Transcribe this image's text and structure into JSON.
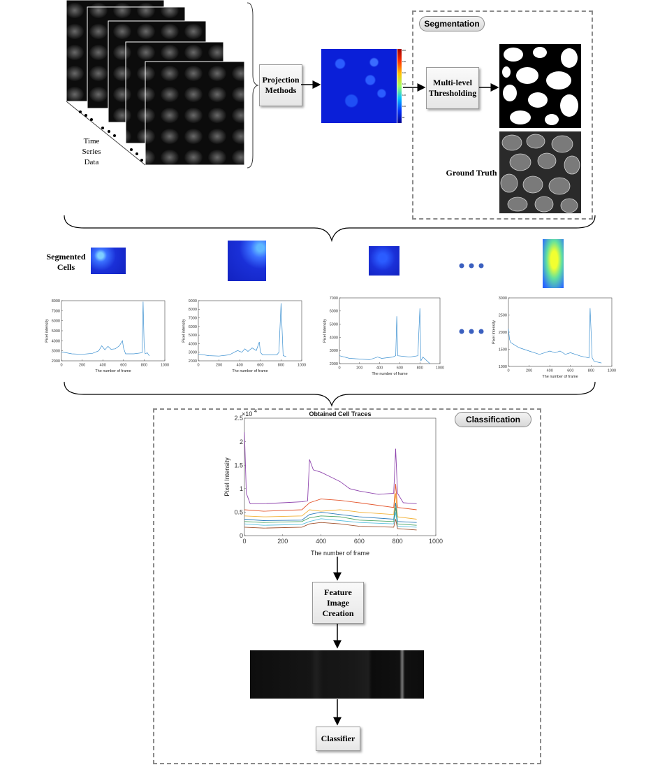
{
  "top": {
    "time_series_label": "Time\nSeries\nData",
    "projection_label": "Projection\nMethods"
  },
  "segmentation": {
    "title": "Segmentation",
    "thresholding_label": "Multi-level\nThresholding",
    "ground_truth_label": "Ground Truth"
  },
  "segmented": {
    "label": "Segmented\nCells"
  },
  "classification": {
    "title": "Classification",
    "feature_label": "Feature\nImage\nCreation",
    "classifier_label": "Classifier"
  },
  "colorbar_ticks": [
    "200",
    "180",
    "160",
    "140",
    "120",
    "100",
    "80"
  ],
  "chart_data": [
    {
      "type": "line",
      "xlabel": "The number of frame",
      "ylabel": "Pixel intensity",
      "xlim": [
        0,
        1000
      ],
      "ylim": [
        2000,
        8000
      ],
      "xticks": [
        "0",
        "200",
        "400",
        "600",
        "800",
        "1000"
      ],
      "yticks": [
        "2000",
        "3000",
        "4000",
        "5000",
        "6000",
        "7000",
        "8000"
      ],
      "x": [
        0,
        100,
        200,
        300,
        360,
        390,
        420,
        450,
        480,
        520,
        560,
        590,
        600,
        620,
        700,
        780,
        790,
        800,
        810,
        830,
        850
      ],
      "y": [
        2900,
        2700,
        2650,
        2750,
        3000,
        3500,
        3100,
        3450,
        3150,
        3200,
        3500,
        4000,
        3300,
        2700,
        2700,
        2800,
        7900,
        3500,
        2700,
        2800,
        2500
      ]
    },
    {
      "type": "line",
      "xlabel": "The number of frame",
      "ylabel": "Pixel intensity",
      "xlim": [
        0,
        1000
      ],
      "ylim": [
        2000,
        9000
      ],
      "xticks": [
        "0",
        "200",
        "400",
        "600",
        "800",
        "1000"
      ],
      "yticks": [
        "2000",
        "3000",
        "4000",
        "5000",
        "6000",
        "7000",
        "8000",
        "9000"
      ],
      "x": [
        0,
        100,
        200,
        300,
        380,
        420,
        450,
        480,
        520,
        560,
        590,
        600,
        620,
        700,
        760,
        780,
        800,
        820,
        850
      ],
      "y": [
        2800,
        2600,
        2550,
        2700,
        3200,
        3000,
        3400,
        3100,
        3500,
        3200,
        4200,
        3000,
        2700,
        2700,
        2700,
        3000,
        8700,
        2600,
        2500
      ]
    },
    {
      "type": "line",
      "xlabel": "The number of frame",
      "ylabel": "Pixel Intensity",
      "xlim": [
        0,
        1000
      ],
      "ylim": [
        2000,
        7000
      ],
      "xticks": [
        "0",
        "200",
        "400",
        "600",
        "800",
        "1000"
      ],
      "yticks": [
        "2000",
        "3000",
        "4000",
        "5000",
        "6000",
        "7000"
      ],
      "x": [
        0,
        100,
        200,
        300,
        380,
        420,
        480,
        530,
        560,
        570,
        580,
        700,
        780,
        800,
        810,
        830,
        900
      ],
      "y": [
        2600,
        2400,
        2350,
        2300,
        2500,
        2400,
        2450,
        2500,
        2600,
        5600,
        2600,
        2500,
        2600,
        6200,
        2200,
        2500,
        2000
      ]
    },
    {
      "type": "line",
      "xlabel": "The number of frame",
      "ylabel": "Pixel Intensity",
      "xlim": [
        0,
        1000
      ],
      "ylim": [
        1000,
        3000
      ],
      "xticks": [
        "0",
        "200",
        "400",
        "600",
        "800",
        "1000"
      ],
      "yticks": [
        "1000",
        "1500",
        "2000",
        "2500",
        "3000"
      ],
      "x": [
        0,
        10,
        20,
        100,
        200,
        300,
        350,
        400,
        450,
        500,
        550,
        600,
        700,
        780,
        790,
        810,
        830,
        900
      ],
      "y": [
        2100,
        1800,
        1700,
        1550,
        1450,
        1350,
        1400,
        1450,
        1400,
        1450,
        1350,
        1400,
        1300,
        1250,
        2700,
        1250,
        1150,
        1100
      ]
    },
    {
      "type": "line",
      "title": "Obtained Cell Traces",
      "xlabel": "The number of frame",
      "ylabel": "Pixel Intensity",
      "y_multiplier": "×10",
      "y_exponent": "4",
      "xlim": [
        0,
        1000
      ],
      "ylim": [
        0,
        2.5
      ],
      "xticks": [
        "0",
        "200",
        "400",
        "600",
        "800",
        "1000"
      ],
      "yticks": [
        "0",
        "0.5",
        "1",
        "1.5",
        "2",
        "2.5"
      ],
      "series": [
        {
          "color": "#8e44ad",
          "x": [
            0,
            10,
            30,
            100,
            200,
            300,
            330,
            340,
            360,
            400,
            450,
            500,
            550,
            600,
            700,
            780,
            790,
            800,
            830,
            900
          ],
          "y": [
            2.2,
            0.9,
            0.68,
            0.68,
            0.7,
            0.72,
            0.74,
            1.62,
            1.4,
            1.35,
            1.25,
            1.15,
            1.0,
            0.95,
            0.88,
            0.9,
            1.85,
            0.9,
            0.7,
            0.68
          ]
        },
        {
          "color": "#e4572e",
          "x": [
            0,
            100,
            300,
            340,
            400,
            500,
            600,
            780,
            790,
            800,
            900
          ],
          "y": [
            0.55,
            0.52,
            0.55,
            0.7,
            0.78,
            0.75,
            0.7,
            0.6,
            1.1,
            0.6,
            0.55
          ]
        },
        {
          "color": "#f2b134",
          "x": [
            0,
            100,
            300,
            340,
            400,
            500,
            600,
            780,
            790,
            800,
            900
          ],
          "y": [
            0.42,
            0.4,
            0.42,
            0.55,
            0.52,
            0.55,
            0.5,
            0.45,
            0.9,
            0.4,
            0.35
          ]
        },
        {
          "color": "#2b7bba",
          "x": [
            0,
            100,
            300,
            340,
            400,
            500,
            600,
            780,
            790,
            800,
            900
          ],
          "y": [
            0.35,
            0.32,
            0.33,
            0.45,
            0.5,
            0.45,
            0.4,
            0.35,
            0.7,
            0.3,
            0.28
          ]
        },
        {
          "color": "#4aa564",
          "x": [
            0,
            100,
            300,
            340,
            400,
            500,
            600,
            780,
            790,
            800,
            900
          ],
          "y": [
            0.3,
            0.28,
            0.3,
            0.38,
            0.42,
            0.4,
            0.33,
            0.3,
            0.6,
            0.25,
            0.22
          ]
        },
        {
          "color": "#5bc0de",
          "x": [
            0,
            100,
            300,
            340,
            400,
            500,
            600,
            780,
            790,
            800,
            900
          ],
          "y": [
            0.25,
            0.22,
            0.24,
            0.3,
            0.36,
            0.32,
            0.28,
            0.25,
            0.5,
            0.2,
            0.18
          ]
        },
        {
          "color": "#a0522d",
          "x": [
            0,
            100,
            300,
            340,
            400,
            500,
            600,
            780,
            790,
            800,
            900
          ],
          "y": [
            0.18,
            0.16,
            0.18,
            0.25,
            0.28,
            0.25,
            0.2,
            0.18,
            0.35,
            0.15,
            0.12
          ]
        }
      ]
    }
  ]
}
